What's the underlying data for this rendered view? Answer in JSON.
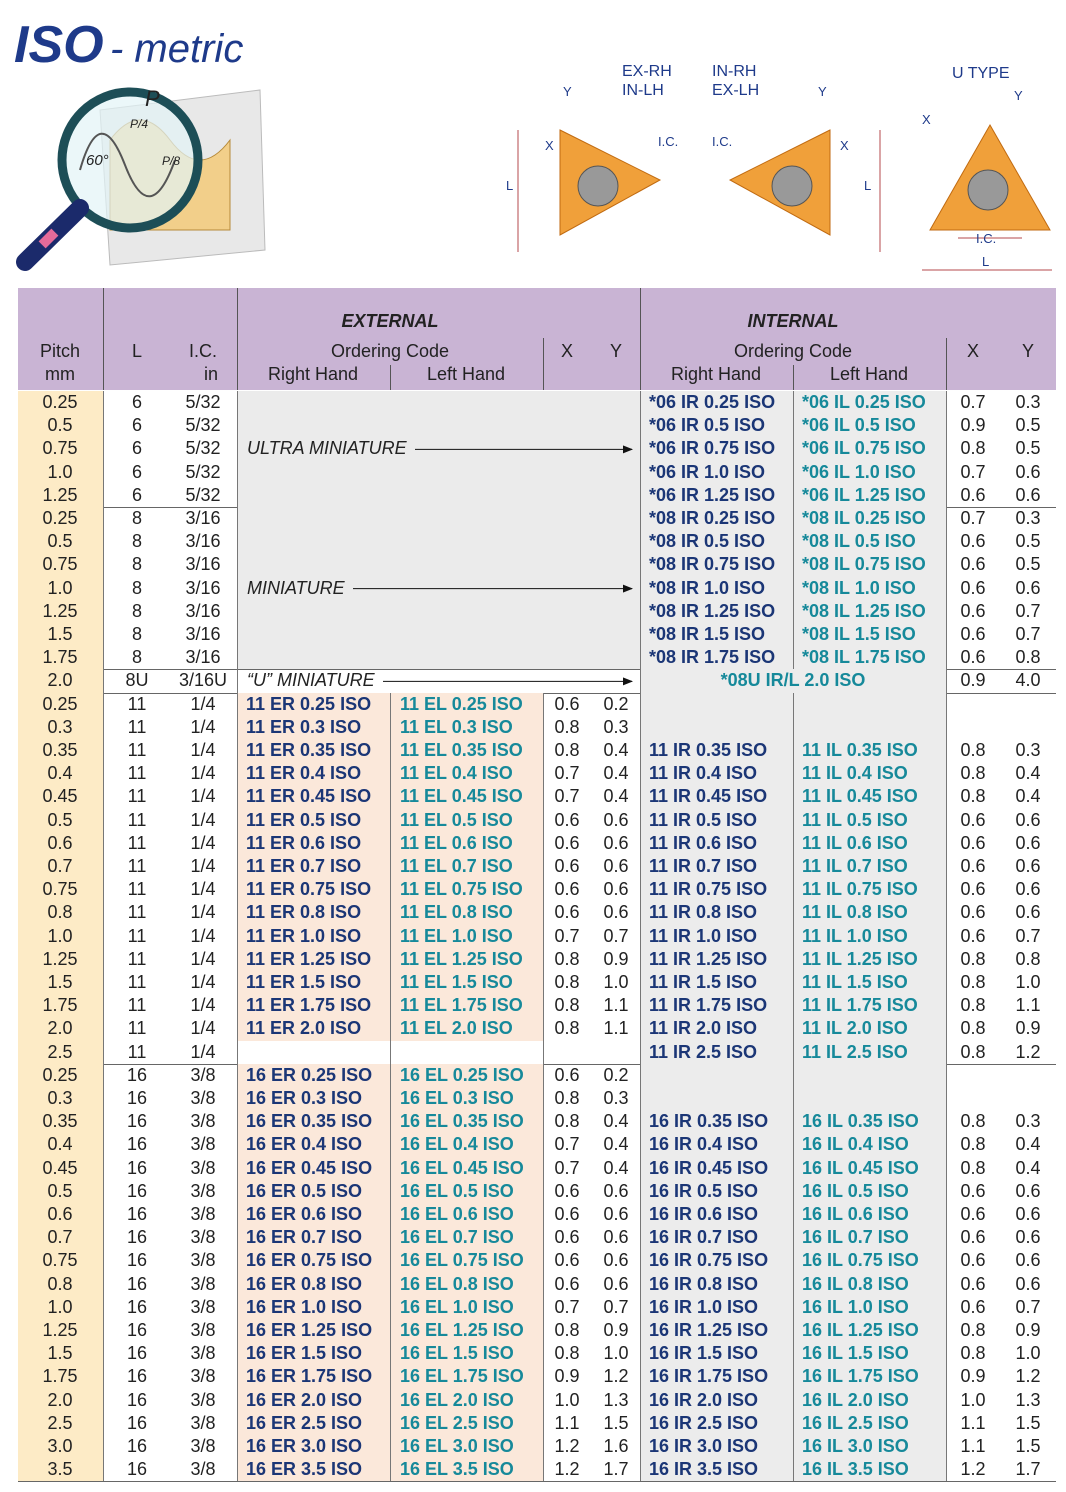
{
  "header": {
    "title_bold": "ISO",
    "title_rest": "- metric",
    "illustration": {
      "pitch": "P",
      "quarter": "P/4",
      "angle": "60°",
      "eighth": "P/8"
    },
    "diagrams": {
      "left_top": "EX-RH",
      "left_bottom": "IN-LH",
      "mid_top": "IN-RH",
      "mid_bottom": "EX-LH",
      "right_title": "U  TYPE",
      "y": "Y",
      "x": "X",
      "l": "L",
      "ic": "I.C."
    }
  },
  "table": {
    "external": "EXTERNAL",
    "internal": "INTERNAL",
    "pitch": "Pitch",
    "pitch_unit": "mm",
    "l": "L",
    "ic": "I.C.",
    "ic_unit": "in",
    "ordering_code": "Ordering Code",
    "right_hand": "Right Hand",
    "left_hand": "Left Hand",
    "x": "X",
    "y": "Y",
    "groups": [
      {
        "note": "ULTRA MINIATURE",
        "rows": [
          {
            "pitch": "0.25",
            "l": "6",
            "ic": "5/32",
            "ir": "*06 IR 0.25 ISO",
            "il": "*06 IL 0.25 ISO",
            "ix": "0.7",
            "iy": "0.3"
          },
          {
            "pitch": "0.5",
            "l": "6",
            "ic": "5/32",
            "ir": "*06 IR 0.5 ISO",
            "il": "*06 IL 0.5 ISO",
            "ix": "0.9",
            "iy": "0.5"
          },
          {
            "pitch": "0.75",
            "l": "6",
            "ic": "5/32",
            "ir": "*06 IR 0.75 ISO",
            "il": "*06 IL 0.75 ISO",
            "ix": "0.8",
            "iy": "0.5"
          },
          {
            "pitch": "1.0",
            "l": "6",
            "ic": "5/32",
            "ir": "*06 IR 1.0 ISO",
            "il": "*06 IL 1.0 ISO",
            "ix": "0.7",
            "iy": "0.6"
          },
          {
            "pitch": "1.25",
            "l": "6",
            "ic": "5/32",
            "ir": "*06 IR 1.25 ISO",
            "il": "*06 IL 1.25 ISO",
            "ix": "0.6",
            "iy": "0.6"
          }
        ]
      },
      {
        "note": "MINIATURE",
        "rows": [
          {
            "pitch": "0.25",
            "l": "8",
            "ic": "3/16",
            "ir": "*08 IR 0.25 ISO",
            "il": "*08 IL 0.25 ISO",
            "ix": "0.7",
            "iy": "0.3"
          },
          {
            "pitch": "0.5",
            "l": "8",
            "ic": "3/16",
            "ir": "*08 IR 0.5 ISO",
            "il": "*08 IL 0.5 ISO",
            "ix": "0.6",
            "iy": "0.5"
          },
          {
            "pitch": "0.75",
            "l": "8",
            "ic": "3/16",
            "ir": "*08 IR 0.75 ISO",
            "il": "*08 IL 0.75 ISO",
            "ix": "0.6",
            "iy": "0.5"
          },
          {
            "pitch": "1.0",
            "l": "8",
            "ic": "3/16",
            "ir": "*08 IR 1.0 ISO",
            "il": "*08 IL 1.0 ISO",
            "ix": "0.6",
            "iy": "0.6"
          },
          {
            "pitch": "1.25",
            "l": "8",
            "ic": "3/16",
            "ir": "*08 IR 1.25 ISO",
            "il": "*08 IL 1.25 ISO",
            "ix": "0.6",
            "iy": "0.7"
          },
          {
            "pitch": "1.5",
            "l": "8",
            "ic": "3/16",
            "ir": "*08 IR 1.5 ISO",
            "il": "*08 IL 1.5 ISO",
            "ix": "0.6",
            "iy": "0.7"
          },
          {
            "pitch": "1.75",
            "l": "8",
            "ic": "3/16",
            "ir": "*08 IR 1.75 ISO",
            "il": "*08 IL 1.75 ISO",
            "ix": "0.6",
            "iy": "0.8"
          }
        ]
      },
      {
        "note": "“U” MINIATURE",
        "rows": [
          {
            "pitch": "2.0",
            "l": "8U",
            "ic": "3/16U",
            "irl": "*08U IR/L 2.0 ISO",
            "ix": "0.9",
            "iy": "4.0"
          }
        ]
      },
      {
        "rows": [
          {
            "pitch": "0.25",
            "l": "11",
            "ic": "1/4",
            "er": "11 ER 0.25 ISO",
            "el": "11 EL 0.25 ISO",
            "ex": "0.6",
            "ey": "0.2"
          },
          {
            "pitch": "0.3",
            "l": "11",
            "ic": "1/4",
            "er": "11 ER 0.3 ISO",
            "el": "11 EL 0.3 ISO",
            "ex": "0.8",
            "ey": "0.3"
          },
          {
            "pitch": "0.35",
            "l": "11",
            "ic": "1/4",
            "er": "11 ER 0.35 ISO",
            "el": "11 EL 0.35 ISO",
            "ex": "0.8",
            "ey": "0.4",
            "ir": "11 IR 0.35 ISO",
            "il": "11 IL 0.35 ISO",
            "ix": "0.8",
            "iy": "0.3"
          },
          {
            "pitch": "0.4",
            "l": "11",
            "ic": "1/4",
            "er": "11 ER 0.4 ISO",
            "el": "11 EL 0.4 ISO",
            "ex": "0.7",
            "ey": "0.4",
            "ir": "11 IR 0.4 ISO",
            "il": "11 IL 0.4 ISO",
            "ix": "0.8",
            "iy": "0.4"
          },
          {
            "pitch": "0.45",
            "l": "11",
            "ic": "1/4",
            "er": "11 ER 0.45 ISO",
            "el": "11 EL 0.45 ISO",
            "ex": "0.7",
            "ey": "0.4",
            "ir": "11 IR 0.45 ISO",
            "il": "11 IL 0.45 ISO",
            "ix": "0.8",
            "iy": "0.4"
          },
          {
            "pitch": "0.5",
            "l": "11",
            "ic": "1/4",
            "er": "11 ER 0.5 ISO",
            "el": "11 EL 0.5 ISO",
            "ex": "0.6",
            "ey": "0.6",
            "ir": "11 IR 0.5 ISO",
            "il": "11 IL 0.5 ISO",
            "ix": "0.6",
            "iy": "0.6"
          },
          {
            "pitch": "0.6",
            "l": "11",
            "ic": "1/4",
            "er": "11 ER 0.6 ISO",
            "el": "11 EL 0.6 ISO",
            "ex": "0.6",
            "ey": "0.6",
            "ir": "11 IR 0.6 ISO",
            "il": "11 IL 0.6 ISO",
            "ix": "0.6",
            "iy": "0.6"
          },
          {
            "pitch": "0.7",
            "l": "11",
            "ic": "1/4",
            "er": "11 ER 0.7 ISO",
            "el": "11 EL 0.7 ISO",
            "ex": "0.6",
            "ey": "0.6",
            "ir": "11 IR 0.7 ISO",
            "il": "11 IL 0.7 ISO",
            "ix": "0.6",
            "iy": "0.6"
          },
          {
            "pitch": "0.75",
            "l": "11",
            "ic": "1/4",
            "er": "11 ER 0.75 ISO",
            "el": "11 EL 0.75 ISO",
            "ex": "0.6",
            "ey": "0.6",
            "ir": "11 IR 0.75 ISO",
            "il": "11 IL 0.75 ISO",
            "ix": "0.6",
            "iy": "0.6"
          },
          {
            "pitch": "0.8",
            "l": "11",
            "ic": "1/4",
            "er": "11 ER 0.8 ISO",
            "el": "11 EL 0.8 ISO",
            "ex": "0.6",
            "ey": "0.6",
            "ir": "11 IR 0.8 ISO",
            "il": "11 IL 0.8 ISO",
            "ix": "0.6",
            "iy": "0.6"
          },
          {
            "pitch": "1.0",
            "l": "11",
            "ic": "1/4",
            "er": "11 ER 1.0 ISO",
            "el": "11 EL 1.0 ISO",
            "ex": "0.7",
            "ey": "0.7",
            "ir": "11 IR 1.0 ISO",
            "il": "11 IL 1.0 ISO",
            "ix": "0.6",
            "iy": "0.7"
          },
          {
            "pitch": "1.25",
            "l": "11",
            "ic": "1/4",
            "er": "11 ER 1.25 ISO",
            "el": "11 EL 1.25 ISO",
            "ex": "0.8",
            "ey": "0.9",
            "ir": "11 IR 1.25 ISO",
            "il": "11 IL 1.25 ISO",
            "ix": "0.8",
            "iy": "0.8"
          },
          {
            "pitch": "1.5",
            "l": "11",
            "ic": "1/4",
            "er": "11 ER 1.5 ISO",
            "el": "11 EL 1.5 ISO",
            "ex": "0.8",
            "ey": "1.0",
            "ir": "11 IR 1.5 ISO",
            "il": "11 IL 1.5 ISO",
            "ix": "0.8",
            "iy": "1.0"
          },
          {
            "pitch": "1.75",
            "l": "11",
            "ic": "1/4",
            "er": "11 ER 1.75 ISO",
            "el": "11 EL 1.75 ISO",
            "ex": "0.8",
            "ey": "1.1",
            "ir": "11 IR 1.75 ISO",
            "il": "11 IL 1.75 ISO",
            "ix": "0.8",
            "iy": "1.1"
          },
          {
            "pitch": "2.0",
            "l": "11",
            "ic": "1/4",
            "er": "11 ER 2.0 ISO",
            "el": "11 EL 2.0 ISO",
            "ex": "0.8",
            "ey": "1.1",
            "ir": "11 IR 2.0 ISO",
            "il": "11 IL 2.0 ISO",
            "ix": "0.8",
            "iy": "0.9"
          },
          {
            "pitch": "2.5",
            "l": "11",
            "ic": "1/4",
            "ir": "11 IR 2.5 ISO",
            "il": "11 IL 2.5 ISO",
            "ix": "0.8",
            "iy": "1.2"
          }
        ]
      },
      {
        "rows": [
          {
            "pitch": "0.25",
            "l": "16",
            "ic": "3/8",
            "er": "16 ER 0.25 ISO",
            "el": "16 EL 0.25 ISO",
            "ex": "0.6",
            "ey": "0.2"
          },
          {
            "pitch": "0.3",
            "l": "16",
            "ic": "3/8",
            "er": "16 ER 0.3 ISO",
            "el": "16 EL 0.3 ISO",
            "ex": "0.8",
            "ey": "0.3"
          },
          {
            "pitch": "0.35",
            "l": "16",
            "ic": "3/8",
            "er": "16 ER 0.35 ISO",
            "el": "16 EL 0.35 ISO",
            "ex": "0.8",
            "ey": "0.4",
            "ir": "16 IR 0.35 ISO",
            "il": "16 IL 0.35 ISO",
            "ix": "0.8",
            "iy": "0.3"
          },
          {
            "pitch": "0.4",
            "l": "16",
            "ic": "3/8",
            "er": "16 ER 0.4 ISO",
            "el": "16 EL 0.4 ISO",
            "ex": "0.7",
            "ey": "0.4",
            "ir": "16 IR 0.4 ISO",
            "il": "16 IL 0.4 ISO",
            "ix": "0.8",
            "iy": "0.4"
          },
          {
            "pitch": "0.45",
            "l": "16",
            "ic": "3/8",
            "er": "16 ER 0.45 ISO",
            "el": "16 EL 0.45 ISO",
            "ex": "0.7",
            "ey": "0.4",
            "ir": "16 IR 0.45 ISO",
            "il": "16 IL 0.45 ISO",
            "ix": "0.8",
            "iy": "0.4"
          },
          {
            "pitch": "0.5",
            "l": "16",
            "ic": "3/8",
            "er": "16 ER 0.5 ISO",
            "el": "16 EL 0.5 ISO",
            "ex": "0.6",
            "ey": "0.6",
            "ir": "16 IR 0.5 ISO",
            "il": "16 IL 0.5 ISO",
            "ix": "0.6",
            "iy": "0.6"
          },
          {
            "pitch": "0.6",
            "l": "16",
            "ic": "3/8",
            "er": "16 ER 0.6 ISO",
            "el": "16 EL 0.6 ISO",
            "ex": "0.6",
            "ey": "0.6",
            "ir": "16 IR 0.6 ISO",
            "il": "16 IL 0.6 ISO",
            "ix": "0.6",
            "iy": "0.6"
          },
          {
            "pitch": "0.7",
            "l": "16",
            "ic": "3/8",
            "er": "16 ER 0.7 ISO",
            "el": "16 EL 0.7 ISO",
            "ex": "0.6",
            "ey": "0.6",
            "ir": "16 IR 0.7 ISO",
            "il": "16 IL 0.7 ISO",
            "ix": "0.6",
            "iy": "0.6"
          },
          {
            "pitch": "0.75",
            "l": "16",
            "ic": "3/8",
            "er": "16 ER 0.75 ISO",
            "el": "16 EL 0.75 ISO",
            "ex": "0.6",
            "ey": "0.6",
            "ir": "16 IR 0.75 ISO",
            "il": "16 IL 0.75 ISO",
            "ix": "0.6",
            "iy": "0.6"
          },
          {
            "pitch": "0.8",
            "l": "16",
            "ic": "3/8",
            "er": "16 ER 0.8 ISO",
            "el": "16 EL 0.8 ISO",
            "ex": "0.6",
            "ey": "0.6",
            "ir": "16 IR 0.8 ISO",
            "il": "16 IL 0.8 ISO",
            "ix": "0.6",
            "iy": "0.6"
          },
          {
            "pitch": "1.0",
            "l": "16",
            "ic": "3/8",
            "er": "16 ER 1.0 ISO",
            "el": "16 EL 1.0 ISO",
            "ex": "0.7",
            "ey": "0.7",
            "ir": "16 IR 1.0 ISO",
            "il": "16 IL 1.0 ISO",
            "ix": "0.6",
            "iy": "0.7"
          },
          {
            "pitch": "1.25",
            "l": "16",
            "ic": "3/8",
            "er": "16 ER 1.25 ISO",
            "el": "16 EL 1.25 ISO",
            "ex": "0.8",
            "ey": "0.9",
            "ir": "16 IR 1.25 ISO",
            "il": "16 IL 1.25 ISO",
            "ix": "0.8",
            "iy": "0.9"
          },
          {
            "pitch": "1.5",
            "l": "16",
            "ic": "3/8",
            "er": "16 ER 1.5 ISO",
            "el": "16 EL 1.5 ISO",
            "ex": "0.8",
            "ey": "1.0",
            "ir": "16 IR 1.5 ISO",
            "il": "16 IL 1.5 ISO",
            "ix": "0.8",
            "iy": "1.0"
          },
          {
            "pitch": "1.75",
            "l": "16",
            "ic": "3/8",
            "er": "16 ER 1.75 ISO",
            "el": "16 EL 1.75 ISO",
            "ex": "0.9",
            "ey": "1.2",
            "ir": "16 IR 1.75 ISO",
            "il": "16 IL 1.75 ISO",
            "ix": "0.9",
            "iy": "1.2"
          },
          {
            "pitch": "2.0",
            "l": "16",
            "ic": "3/8",
            "er": "16 ER 2.0 ISO",
            "el": "16 EL 2.0 ISO",
            "ex": "1.0",
            "ey": "1.3",
            "ir": "16 IR 2.0 ISO",
            "il": "16 IL 2.0 ISO",
            "ix": "1.0",
            "iy": "1.3"
          },
          {
            "pitch": "2.5",
            "l": "16",
            "ic": "3/8",
            "er": "16 ER 2.5 ISO",
            "el": "16 EL 2.5 ISO",
            "ex": "1.1",
            "ey": "1.5",
            "ir": "16 IR 2.5 ISO",
            "il": "16 IL 2.5 ISO",
            "ix": "1.1",
            "iy": "1.5"
          },
          {
            "pitch": "3.0",
            "l": "16",
            "ic": "3/8",
            "er": "16 ER 3.0 ISO",
            "el": "16 EL 3.0 ISO",
            "ex": "1.2",
            "ey": "1.6",
            "ir": "16 IR 3.0 ISO",
            "il": "16 IL 3.0 ISO",
            "ix": "1.1",
            "iy": "1.5"
          },
          {
            "pitch": "3.5",
            "l": "16",
            "ic": "3/8",
            "er": "16 ER 3.5 ISO",
            "el": "16 EL 3.5 ISO",
            "ex": "1.2",
            "ey": "1.7",
            "ir": "16 IR 3.5 ISO",
            "il": "16 IL 3.5 ISO",
            "ix": "1.2",
            "iy": "1.7"
          }
        ]
      }
    ]
  }
}
